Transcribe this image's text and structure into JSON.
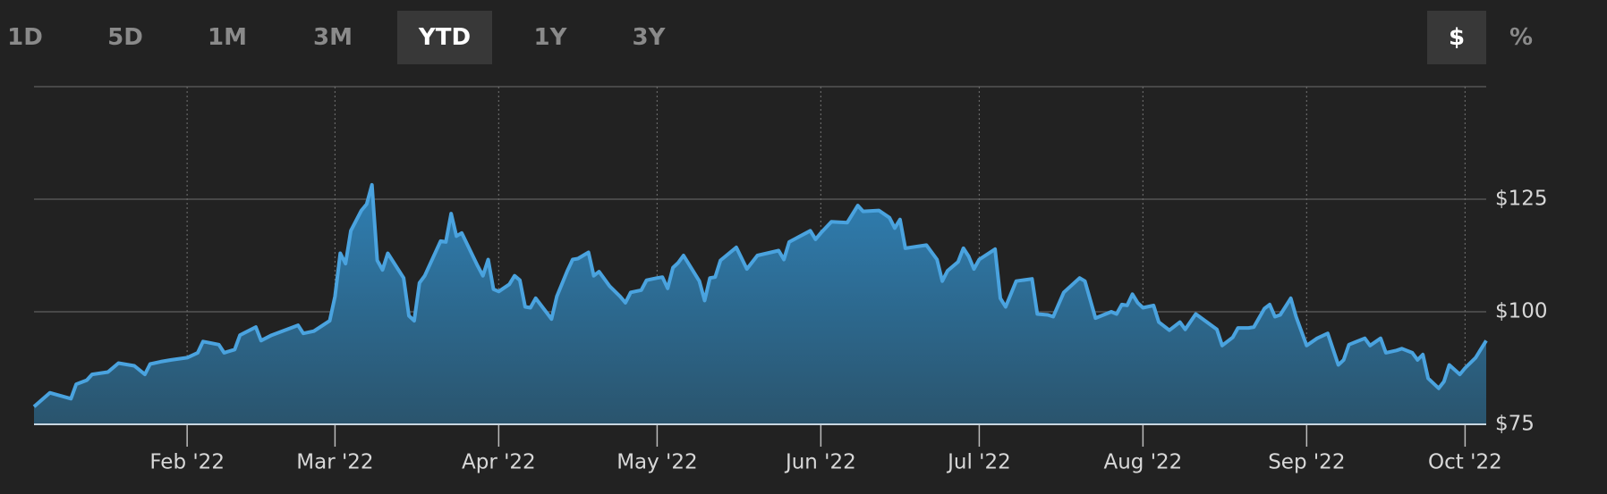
{
  "controls": {
    "ranges": [
      "1D",
      "5D",
      "1M",
      "3M",
      "YTD",
      "1Y",
      "3Y"
    ],
    "units": [
      "$",
      "%"
    ]
  },
  "chart_data": {
    "type": "area",
    "color": "#4aa3df",
    "grid": true,
    "x": [
      3,
      6,
      10,
      11,
      13,
      14,
      17,
      19,
      22,
      24,
      25,
      27,
      29,
      32,
      34,
      35,
      38,
      39,
      41,
      42,
      45,
      46,
      48,
      53,
      54,
      56,
      59,
      60,
      61,
      62,
      63,
      65,
      66,
      67,
      68,
      69,
      70,
      73,
      74,
      75,
      76,
      77,
      80,
      81,
      82,
      83,
      84,
      87,
      88,
      89,
      90,
      91,
      93,
      94,
      95,
      96,
      97,
      98,
      101,
      102,
      104,
      105,
      106,
      108,
      109,
      110,
      112,
      114,
      115,
      116,
      118,
      119,
      121,
      122,
      123,
      124,
      125,
      126,
      129,
      130,
      131,
      132,
      133,
      136,
      138,
      140,
      144,
      145,
      146,
      150,
      151,
      152,
      154,
      157,
      159,
      160,
      163,
      165,
      166,
      167,
      168,
      172,
      174,
      175,
      176,
      178,
      179,
      180,
      181,
      182,
      185,
      186,
      187,
      189,
      192,
      193,
      195,
      196,
      198,
      201,
      202,
      204,
      207,
      208,
      209,
      210,
      211,
      212,
      213,
      215,
      216,
      218,
      220,
      221,
      223,
      227,
      228,
      230,
      231,
      233,
      234,
      236,
      237,
      238,
      239,
      241,
      242,
      244,
      246,
      248,
      250,
      251,
      252,
      255,
      256,
      258,
      259,
      261,
      262,
      264,
      265,
      266,
      267,
      269,
      270,
      271,
      273,
      274,
      276,
      278
    ],
    "values": [
      78.9,
      82.0,
      80.7,
      83.9,
      84.8,
      86.1,
      86.6,
      88.6,
      88.0,
      86.1,
      88.4,
      88.9,
      89.3,
      89.8,
      90.9,
      93.4,
      92.7,
      90.9,
      91.6,
      94.8,
      96.6,
      93.6,
      94.8,
      97.0,
      95.2,
      95.7,
      98.0,
      103.4,
      113.0,
      110.7,
      118.0,
      122.5,
      123.9,
      128.2,
      111.4,
      109.3,
      113.0,
      107.5,
      99.1,
      98.0,
      106.4,
      108.0,
      115.7,
      115.5,
      121.8,
      116.8,
      117.5,
      110.2,
      108.0,
      111.6,
      105.0,
      104.5,
      106.1,
      108.0,
      107.0,
      101.1,
      100.9,
      103.0,
      98.4,
      103.4,
      109.1,
      111.6,
      111.8,
      113.2,
      108.0,
      108.9,
      105.7,
      103.4,
      102.0,
      104.3,
      104.8,
      107.0,
      107.5,
      107.7,
      105.2,
      109.8,
      110.9,
      112.5,
      106.8,
      102.5,
      107.5,
      107.7,
      111.4,
      114.3,
      109.5,
      112.5,
      113.6,
      111.6,
      115.5,
      118.0,
      116.1,
      117.5,
      120.0,
      119.8,
      123.6,
      122.3,
      122.5,
      120.9,
      118.6,
      120.5,
      114.1,
      114.8,
      111.6,
      106.8,
      109.1,
      111.1,
      114.1,
      112.3,
      109.5,
      111.6,
      113.9,
      103.0,
      101.1,
      106.8,
      107.3,
      99.5,
      99.3,
      98.9,
      104.3,
      107.5,
      106.8,
      98.6,
      100.0,
      99.5,
      101.6,
      101.4,
      103.9,
      102.0,
      100.9,
      101.4,
      97.7,
      95.9,
      97.7,
      96.1,
      99.5,
      96.1,
      92.5,
      94.3,
      96.4,
      96.4,
      96.6,
      100.7,
      101.6,
      98.9,
      99.3,
      103.0,
      98.9,
      92.5,
      94.1,
      95.2,
      88.2,
      89.3,
      92.7,
      94.1,
      92.5,
      94.1,
      90.9,
      91.4,
      91.8,
      90.9,
      89.3,
      90.5,
      85.2,
      83.0,
      84.5,
      88.2,
      86.1,
      87.5,
      89.8,
      93.6
    ],
    "xlim": [
      3,
      278
    ],
    "xticks": [
      {
        "value": 32,
        "label": "Feb '22"
      },
      {
        "value": 60,
        "label": "Mar '22"
      },
      {
        "value": 91,
        "label": "Apr '22"
      },
      {
        "value": 121,
        "label": "May '22"
      },
      {
        "value": 152,
        "label": "Jun '22"
      },
      {
        "value": 182,
        "label": "Jul '22"
      },
      {
        "value": 213,
        "label": "Aug '22"
      },
      {
        "value": 244,
        "label": "Sep '22"
      },
      {
        "value": 274,
        "label": "Oct '22"
      }
    ],
    "ylim": [
      75,
      150
    ],
    "yticks": [
      {
        "value": 75,
        "label": "$75"
      },
      {
        "value": 100,
        "label": "$100"
      },
      {
        "value": 125,
        "label": "$125"
      }
    ]
  }
}
